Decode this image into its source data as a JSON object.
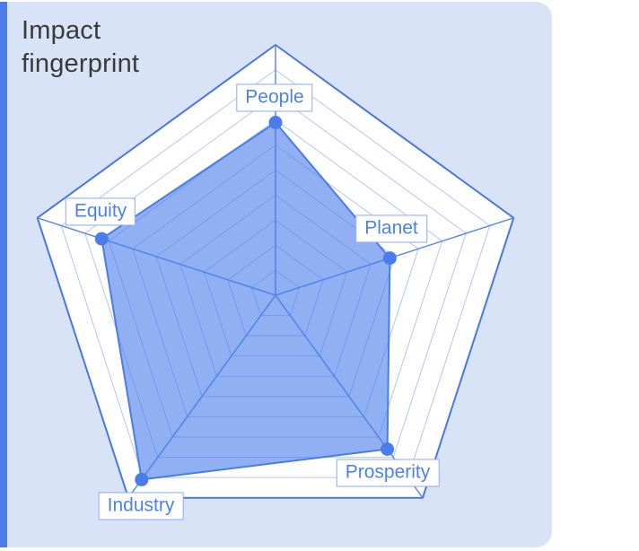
{
  "card": {
    "title": "Impact fingerprint",
    "title_line1": "Impact",
    "title_line2": "fingerprint"
  },
  "chart_data": {
    "type": "radar",
    "title": "Impact fingerprint",
    "scale": {
      "min": 0,
      "max": 1,
      "rings": 10
    },
    "axes": [
      {
        "label": "People",
        "value": 0.69
      },
      {
        "label": "Planet",
        "value": 0.48
      },
      {
        "label": "Prosperity",
        "value": 0.76
      },
      {
        "label": "Industry",
        "value": 0.91
      },
      {
        "label": "Equity",
        "value": 0.73
      }
    ],
    "layout": {
      "legend": "none",
      "grid": "concentric-pentagons",
      "start_axis": "top",
      "direction": "clockwise"
    },
    "colors": {
      "accent_strip": "#4c7de5",
      "card_bg": "#d9e3f8",
      "plot_bg": "#ffffff",
      "grid_strong": "#4677e3",
      "grid_light": "#b3c6f1",
      "spoke": "#5e88e9",
      "series_fill": "#4d7eec",
      "series_stroke": "#4a7ce8",
      "point": "#4a7ceb",
      "label_text": "#4a82f0",
      "label_border": "#8aa9f0",
      "title_text": "#3a3a3a"
    }
  }
}
